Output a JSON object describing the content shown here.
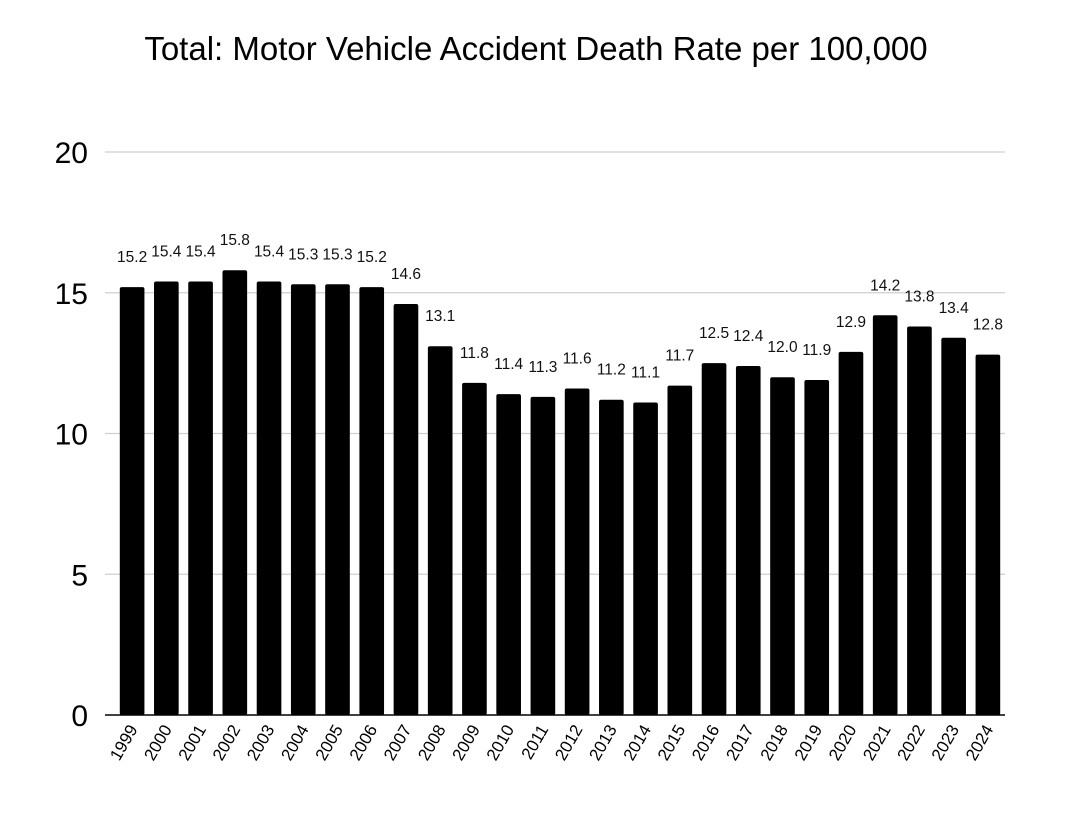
{
  "chart_data": {
    "type": "bar",
    "title": "Total: Motor Vehicle Accident Death Rate per 100,000",
    "xlabel": "",
    "ylabel": "",
    "ylim": [
      0,
      20
    ],
    "yticks": [
      0,
      5,
      10,
      15,
      20
    ],
    "grid": true,
    "legend": "none",
    "bar_color": "#000000",
    "categories": [
      "1999",
      "2000",
      "2001",
      "2002",
      "2003",
      "2004",
      "2005",
      "2006",
      "2007",
      "2008",
      "2009",
      "2010",
      "2011",
      "2012",
      "2013",
      "2014",
      "2015",
      "2016",
      "2017",
      "2018",
      "2019",
      "2020",
      "2021",
      "2022",
      "2023",
      "2024"
    ],
    "values": [
      15.2,
      15.4,
      15.4,
      15.8,
      15.4,
      15.3,
      15.3,
      15.2,
      14.6,
      13.1,
      11.8,
      11.4,
      11.3,
      11.6,
      11.2,
      11.1,
      11.7,
      12.5,
      12.4,
      12.0,
      11.9,
      12.9,
      14.2,
      13.8,
      13.4,
      12.8
    ],
    "data_labels": [
      "15.2",
      "15.4",
      "15.4",
      "15.8",
      "15.4",
      "15.3",
      "15.3",
      "15.2",
      "14.6",
      "13.1",
      "11.8",
      "11.4",
      "11.3",
      "11.6",
      "11.2",
      "11.1",
      "11.7",
      "12.5",
      "12.4",
      "12.0",
      "11.9",
      "12.9",
      "14.2",
      "13.8",
      "13.4",
      "12.8"
    ]
  }
}
